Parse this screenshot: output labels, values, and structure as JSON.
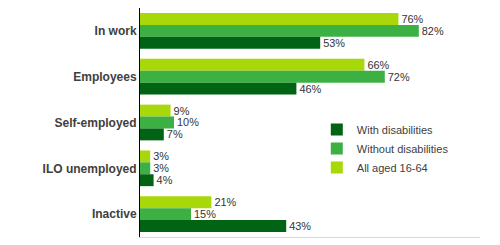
{
  "chart_data": {
    "type": "bar",
    "orientation": "horizontal",
    "categories": [
      "In work",
      "Employees",
      "Self-employed",
      "ILO unemployed",
      "Inactive"
    ],
    "series": [
      {
        "name": "With disabilities",
        "color": "#006414",
        "values": [
          53,
          46,
          7,
          4,
          43
        ],
        "value_labels": [
          "53%",
          "46%",
          "7%",
          "4%",
          "43%"
        ]
      },
      {
        "name": "Without disabilities",
        "color": "#3cb043",
        "values": [
          82,
          72,
          10,
          3,
          15
        ],
        "value_labels": [
          "82%",
          "72%",
          "10%",
          "3%",
          "15%"
        ]
      },
      {
        "name": "All aged 16-64",
        "color": "#a8d80a",
        "values": [
          76,
          66,
          9,
          3,
          21
        ],
        "value_labels": [
          "76%",
          "66%",
          "9%",
          "3%",
          "21%"
        ]
      }
    ],
    "xlim": [
      0,
      100
    ],
    "data_labels": true,
    "tick_labels": "y",
    "grid": false,
    "legend": "lower right"
  }
}
